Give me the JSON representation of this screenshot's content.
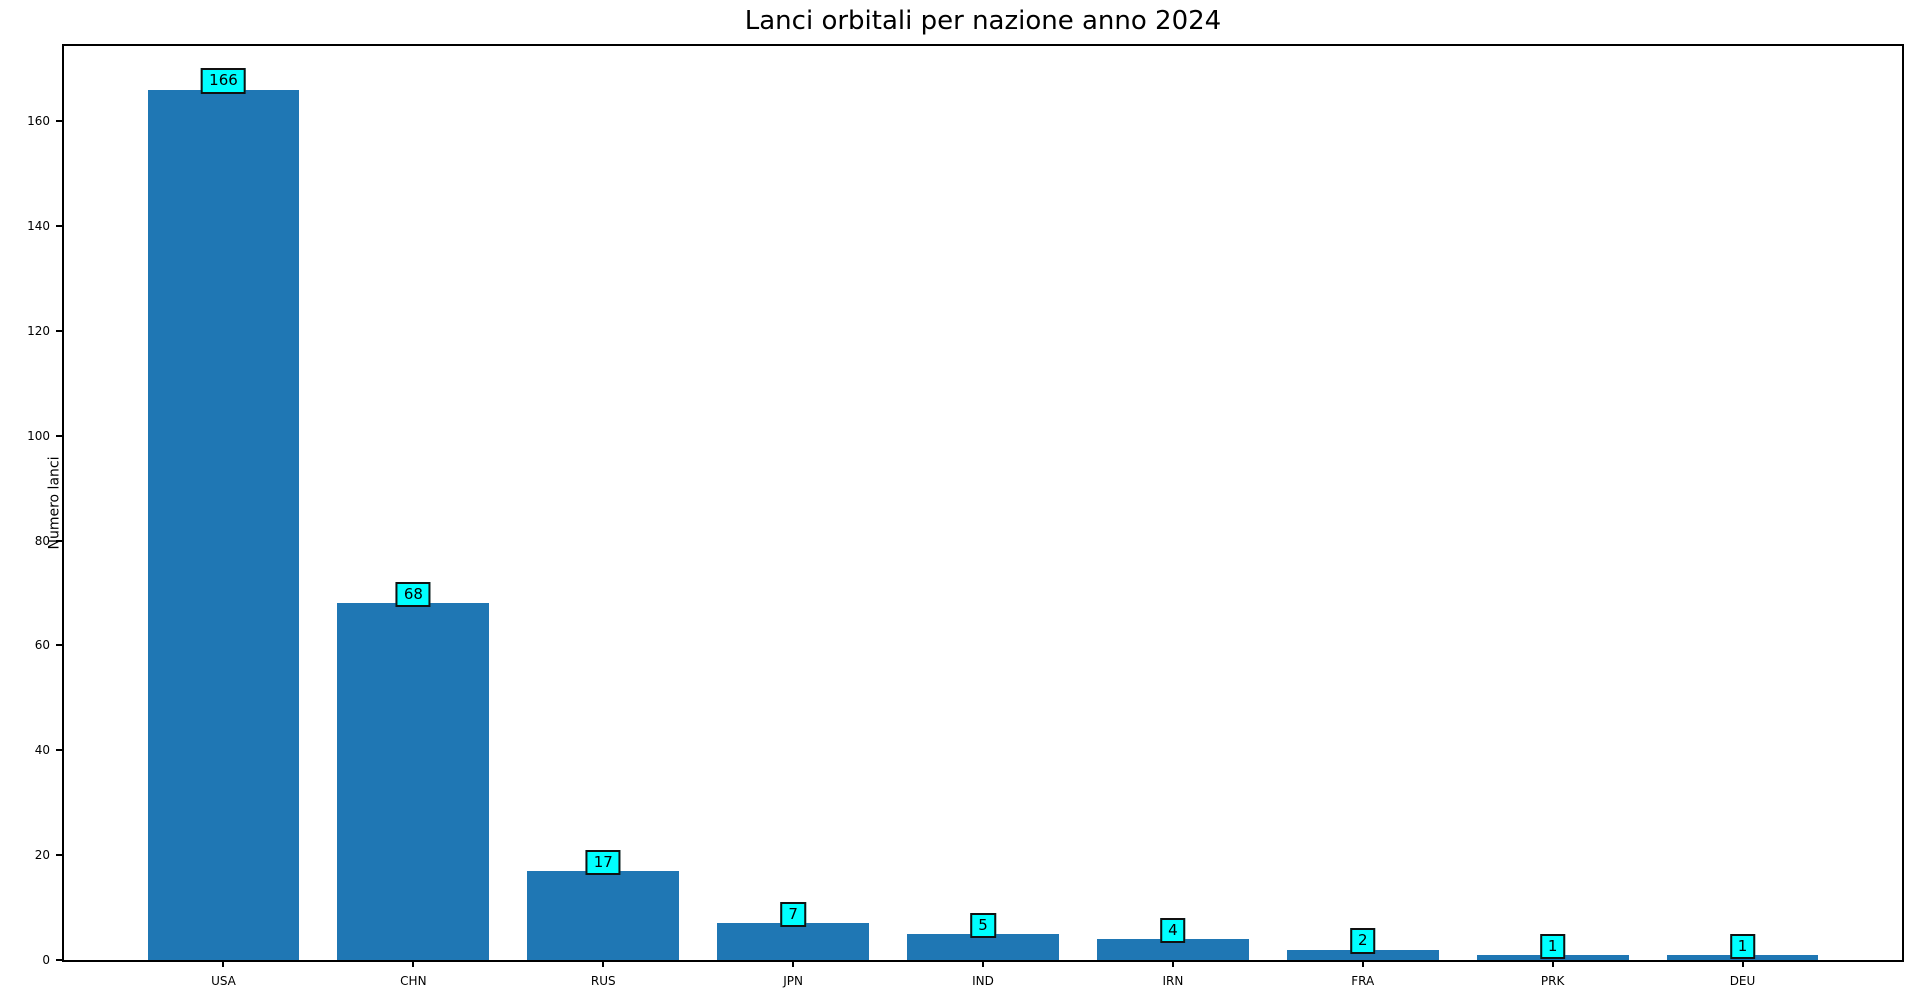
{
  "figure": {
    "title": "Lanci orbitali per nazione anno 2024",
    "ylabel": "Numero lanci"
  },
  "chart_data": {
    "type": "bar",
    "title": "Lanci orbitali per nazione anno 2024",
    "xlabel": "",
    "ylabel": "Numero lanci",
    "categories": [
      "USA",
      "CHN",
      "RUS",
      "JPN",
      "IND",
      "IRN",
      "FRA",
      "PRK",
      "DEU"
    ],
    "values": [
      166,
      68,
      17,
      7,
      5,
      4,
      2,
      1,
      1
    ],
    "value_labels": [
      "166",
      "68",
      "17",
      "7",
      "5",
      "4",
      "2",
      "1",
      "1"
    ],
    "yticks": [
      0,
      20,
      40,
      60,
      80,
      100,
      120,
      140,
      160
    ],
    "ylim": [
      0,
      174.3
    ],
    "bar_width_fraction": 0.8,
    "grid": false,
    "legend": false,
    "colors": {
      "bar": "#1f77b4",
      "value_box_fill": "#00ffff",
      "value_box_border": "#111111",
      "spine": "#000000",
      "text": "#000000",
      "background": "#ffffff"
    }
  }
}
